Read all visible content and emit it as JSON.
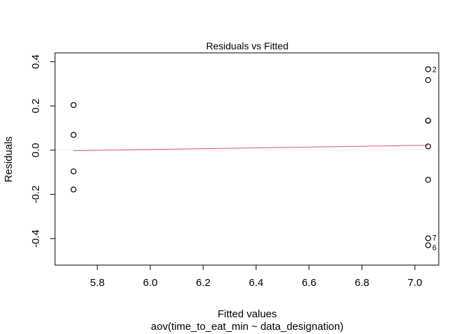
{
  "chart_data": {
    "type": "scatter",
    "title": "Residuals vs Fitted",
    "xlabel": "Fitted values",
    "subtitle": "aov(time_to_eat_min ~ data_designation)",
    "ylabel": "Residuals",
    "xlim": [
      5.64,
      7.09
    ],
    "ylim": [
      -0.52,
      0.44
    ],
    "xticks": [
      5.8,
      6.0,
      6.2,
      6.4,
      6.6,
      6.8,
      7.0
    ],
    "xtick_labels": [
      "5.8",
      "6.0",
      "6.2",
      "6.4",
      "6.6",
      "6.8",
      "7.0"
    ],
    "yticks": [
      -0.4,
      -0.2,
      0.0,
      0.2,
      0.4
    ],
    "ytick_labels": [
      "-0.4",
      "-0.2",
      "0.0",
      "0.2",
      "0.4"
    ],
    "points": [
      {
        "x": 5.71,
        "y": 0.204,
        "label": ""
      },
      {
        "x": 5.71,
        "y": 0.069,
        "label": ""
      },
      {
        "x": 5.71,
        "y": -0.096,
        "label": ""
      },
      {
        "x": 5.71,
        "y": -0.178,
        "label": ""
      },
      {
        "x": 7.05,
        "y": 0.366,
        "label": "2"
      },
      {
        "x": 7.05,
        "y": 0.317,
        "label": ""
      },
      {
        "x": 7.05,
        "y": 0.133,
        "label": ""
      },
      {
        "x": 7.05,
        "y": 0.133,
        "label": ""
      },
      {
        "x": 7.05,
        "y": 0.017,
        "label": ""
      },
      {
        "x": 7.05,
        "y": -0.134,
        "label": ""
      },
      {
        "x": 7.05,
        "y": -0.399,
        "label": "7"
      },
      {
        "x": 7.05,
        "y": -0.43,
        "label": "6"
      }
    ],
    "smooth_line": [
      {
        "x": 5.71,
        "y": -0.002
      },
      {
        "x": 7.05,
        "y": 0.022
      }
    ],
    "reference_line_y": 0.0,
    "colors": {
      "points": "#000000",
      "smooth": "#DF536B",
      "reference": "#BEBEBE"
    }
  }
}
